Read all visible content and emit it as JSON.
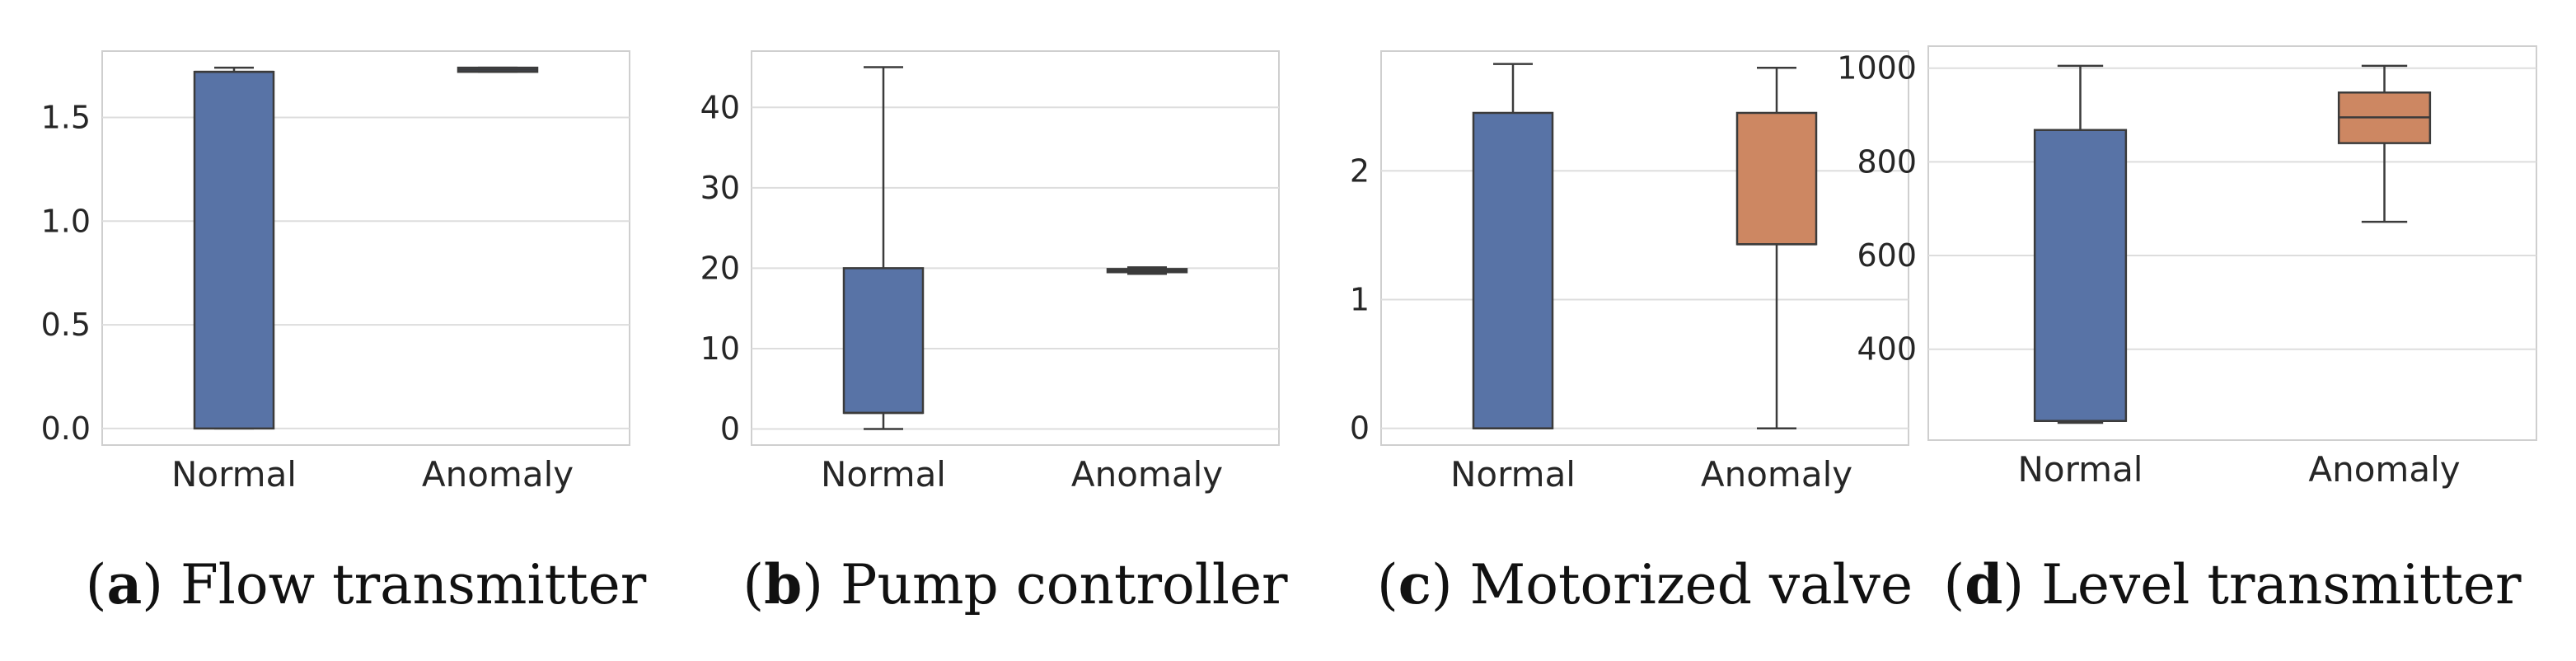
{
  "colors": {
    "normal": "#5873a6",
    "anomaly": "#cd8762",
    "line": "#3b3b3b",
    "grid": "#dddddd",
    "frame": "#cfcfcf"
  },
  "chart_data": [
    {
      "type": "box",
      "caption_letter": "a",
      "caption_title": "Flow transmitter",
      "categories": [
        "Normal",
        "Anomaly"
      ],
      "ylim": [
        -0.08,
        1.82
      ],
      "yticks": [
        0.0,
        0.5,
        1.0,
        1.5
      ],
      "ytick_labels": [
        "0.0",
        "0.5",
        "1.0",
        "1.5"
      ],
      "boxes": [
        {
          "name": "Normal",
          "whisker_low": 0.0,
          "q1": 0.0,
          "median": 1.72,
          "q3": 1.72,
          "whisker_high": 1.74,
          "color": "normal"
        },
        {
          "name": "Anomaly",
          "whisker_low": 1.72,
          "q1": 1.72,
          "median": 1.73,
          "q3": 1.74,
          "whisker_high": 1.74,
          "color": "normal"
        }
      ]
    },
    {
      "type": "box",
      "caption_letter": "b",
      "caption_title": "Pump controller",
      "categories": [
        "Normal",
        "Anomaly"
      ],
      "ylim": [
        -2,
        47
      ],
      "yticks": [
        0,
        10,
        20,
        30,
        40
      ],
      "ytick_labels": [
        "0",
        "10",
        "20",
        "30",
        "40"
      ],
      "boxes": [
        {
          "name": "Normal",
          "whisker_low": 0,
          "q1": 2,
          "median": 2,
          "q3": 20,
          "whisker_high": 45,
          "color": "normal"
        },
        {
          "name": "Anomaly",
          "whisker_low": 19.3,
          "q1": 19.5,
          "median": 19.7,
          "q3": 19.9,
          "whisker_high": 20.1,
          "color": "normal"
        }
      ]
    },
    {
      "type": "box",
      "caption_letter": "c",
      "caption_title": "Motorized valve",
      "categories": [
        "Normal",
        "Anomaly"
      ],
      "ylim": [
        -0.13,
        2.93
      ],
      "yticks": [
        0,
        1,
        2
      ],
      "ytick_labels": [
        "0",
        "1",
        "2"
      ],
      "boxes": [
        {
          "name": "Normal",
          "whisker_low": 0.0,
          "q1": 0.0,
          "median": 0.0,
          "q3": 2.45,
          "whisker_high": 2.83,
          "color": "normal"
        },
        {
          "name": "Anomaly",
          "whisker_low": 0.0,
          "q1": 1.43,
          "median": 1.43,
          "q3": 2.45,
          "whisker_high": 2.8,
          "color": "anomaly"
        }
      ]
    },
    {
      "type": "box",
      "caption_letter": "d",
      "caption_title": "Level transmitter",
      "categories": [
        "Normal",
        "Anomaly"
      ],
      "ylim": [
        206,
        1047
      ],
      "yticks": [
        400,
        600,
        800,
        1000
      ],
      "ytick_labels": [
        "400",
        "600",
        "800",
        "1000"
      ],
      "boxes": [
        {
          "name": "Normal",
          "whisker_low": 243,
          "q1": 247,
          "median": 247,
          "q3": 868,
          "whisker_high": 1005,
          "color": "normal"
        },
        {
          "name": "Anomaly",
          "whisker_low": 672,
          "q1": 840,
          "median": 895,
          "q3": 948,
          "whisker_high": 1005,
          "color": "anomaly"
        }
      ]
    }
  ]
}
